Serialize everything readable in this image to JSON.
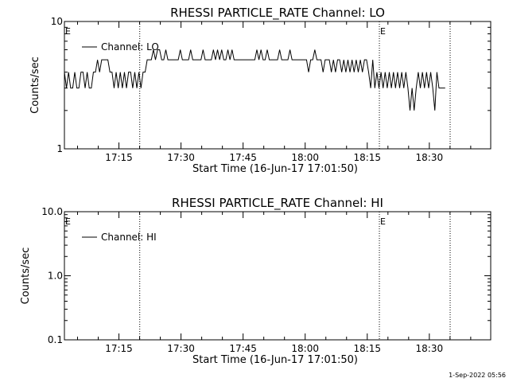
{
  "chart_data": [
    {
      "type": "line",
      "title": "RHESSI PARTICLE_RATE Channel: LO",
      "xlabel": "Start Time (16-Jun-17 17:01:50)",
      "ylabel": "Counts/sec",
      "yscale": "log",
      "ylim": [
        1,
        10
      ],
      "y_ticks": [
        1,
        10
      ],
      "y_tick_labels": [
        "1",
        "10"
      ],
      "xlim_minutes": [
        0,
        103
      ],
      "x_tick_labels": [
        "17:15",
        "17:30",
        "17:45",
        "18:00",
        "18:15",
        "18:30"
      ],
      "x_tick_minutes": [
        13.17,
        28.17,
        43.17,
        58.17,
        73.17,
        88.17
      ],
      "event_lines_minutes": [
        18.2,
        76.1,
        93.2
      ],
      "event_labels": [
        "E",
        "E"
      ],
      "legend": {
        "entries": [
          "Channel: LO"
        ],
        "placement": "top-left"
      },
      "series": [
        {
          "name": "Channel: LO",
          "x": [
            0.0,
            0.5,
            1.0,
            1.5,
            2.0,
            2.5,
            3.0,
            3.5,
            4.0,
            4.5,
            5.0,
            5.5,
            6.0,
            6.5,
            7.0,
            7.5,
            8.0,
            8.5,
            9.0,
            9.5,
            10.0,
            10.5,
            11.0,
            11.5,
            12.0,
            12.5,
            13.0,
            13.5,
            14.0,
            14.5,
            15.0,
            15.5,
            16.0,
            16.5,
            17.0,
            17.5,
            18.0,
            18.5,
            19.0,
            19.5,
            20.0,
            20.5,
            21.0,
            21.5,
            22.0,
            22.5,
            23.0,
            23.5,
            24.0,
            24.5,
            25.0,
            25.5,
            26.0,
            26.5,
            27.0,
            27.5,
            28.0,
            28.5,
            29.0,
            29.5,
            30.0,
            30.5,
            31.0,
            31.5,
            32.0,
            32.5,
            33.0,
            33.5,
            34.0,
            34.5,
            35.0,
            35.5,
            36.0,
            36.5,
            37.0,
            37.5,
            38.0,
            38.5,
            39.0,
            39.5,
            40.0,
            40.5,
            41.0,
            41.5,
            42.0,
            42.5,
            43.0,
            43.5,
            44.0,
            44.5,
            45.0,
            45.5,
            46.0,
            46.5,
            47.0,
            47.5,
            48.0,
            48.5,
            49.0,
            49.5,
            50.0,
            50.5,
            51.0,
            51.5,
            52.0,
            52.5,
            53.0,
            53.5,
            54.0,
            54.5,
            55.0,
            55.5,
            56.0,
            56.5,
            57.0,
            57.5,
            58.0,
            58.5,
            59.0,
            59.5,
            60.0,
            60.5,
            61.0,
            61.5,
            62.0,
            62.5,
            63.0,
            63.5,
            64.0,
            64.5,
            65.0,
            65.5,
            66.0,
            66.5,
            67.0,
            67.5,
            68.0,
            68.5,
            69.0,
            69.5,
            70.0,
            70.5,
            71.0,
            71.5,
            72.0,
            72.5,
            73.0,
            73.5,
            74.0,
            74.5,
            75.0,
            75.5,
            76.0,
            76.5,
            77.0,
            77.5,
            78.0,
            78.5,
            79.0,
            79.5,
            80.0,
            80.5,
            81.0,
            81.5,
            82.0,
            82.5,
            83.0,
            83.5,
            84.0,
            84.5,
            85.0,
            85.5,
            86.0,
            86.5,
            87.0,
            87.5,
            88.0,
            88.5,
            89.0,
            89.5,
            90.0,
            90.5,
            91.0,
            91.5,
            92.0
          ],
          "y": [
            4,
            3,
            4,
            3,
            3,
            4,
            3,
            3,
            4,
            4,
            3,
            4,
            3,
            3,
            4,
            4,
            5,
            4,
            5,
            5,
            5,
            5,
            4,
            4,
            3,
            4,
            3,
            4,
            3,
            4,
            3,
            4,
            4,
            3,
            4,
            3,
            4,
            3,
            4,
            4,
            5,
            5,
            5,
            6,
            5,
            6,
            6,
            5,
            5,
            6,
            5,
            5,
            5,
            5,
            5,
            5,
            6,
            5,
            5,
            5,
            5,
            6,
            5,
            5,
            5,
            5,
            5,
            6,
            5,
            5,
            5,
            5,
            6,
            5,
            6,
            5,
            6,
            5,
            5,
            6,
            5,
            6,
            5,
            5,
            5,
            5,
            5,
            5,
            5,
            5,
            5,
            5,
            5,
            6,
            5,
            6,
            5,
            5,
            6,
            5,
            5,
            5,
            5,
            5,
            6,
            5,
            5,
            5,
            5,
            6,
            5,
            5,
            5,
            5,
            5,
            5,
            5,
            5,
            4,
            5,
            5,
            6,
            5,
            5,
            5,
            4,
            5,
            5,
            5,
            4,
            5,
            4,
            5,
            5,
            4,
            5,
            4,
            5,
            4,
            5,
            4,
            5,
            4,
            5,
            4,
            5,
            5,
            4,
            3,
            5,
            3,
            4,
            3,
            4,
            3,
            4,
            3,
            4,
            3,
            4,
            3,
            4,
            3,
            4,
            3,
            4,
            3,
            2,
            3,
            2,
            3,
            4,
            3,
            4,
            3,
            4,
            3,
            4,
            3,
            2,
            4,
            3,
            3,
            3,
            3
          ]
        }
      ]
    },
    {
      "type": "line",
      "title": "RHESSI PARTICLE_RATE Channel: HI",
      "xlabel": "Start Time (16-Jun-17 17:01:50)",
      "ylabel": "Counts/sec",
      "yscale": "log",
      "ylim": [
        0.1,
        10
      ],
      "y_ticks": [
        0.1,
        1,
        10
      ],
      "y_tick_labels": [
        "0.1",
        "1.0",
        "10.0"
      ],
      "xlim_minutes": [
        0,
        103
      ],
      "x_tick_labels": [
        "17:15",
        "17:30",
        "17:45",
        "18:00",
        "18:15",
        "18:30"
      ],
      "x_tick_minutes": [
        13.17,
        28.17,
        43.17,
        58.17,
        73.17,
        88.17
      ],
      "event_lines_minutes": [
        18.2,
        76.1,
        93.2
      ],
      "event_labels": [
        "E",
        "E"
      ],
      "legend": {
        "entries": [
          "Channel: HI"
        ],
        "placement": "top-left"
      },
      "series": [
        {
          "name": "Channel: HI",
          "x": [],
          "y": []
        }
      ]
    }
  ],
  "footer": {
    "timestamp": "1-Sep-2022 05:56"
  }
}
